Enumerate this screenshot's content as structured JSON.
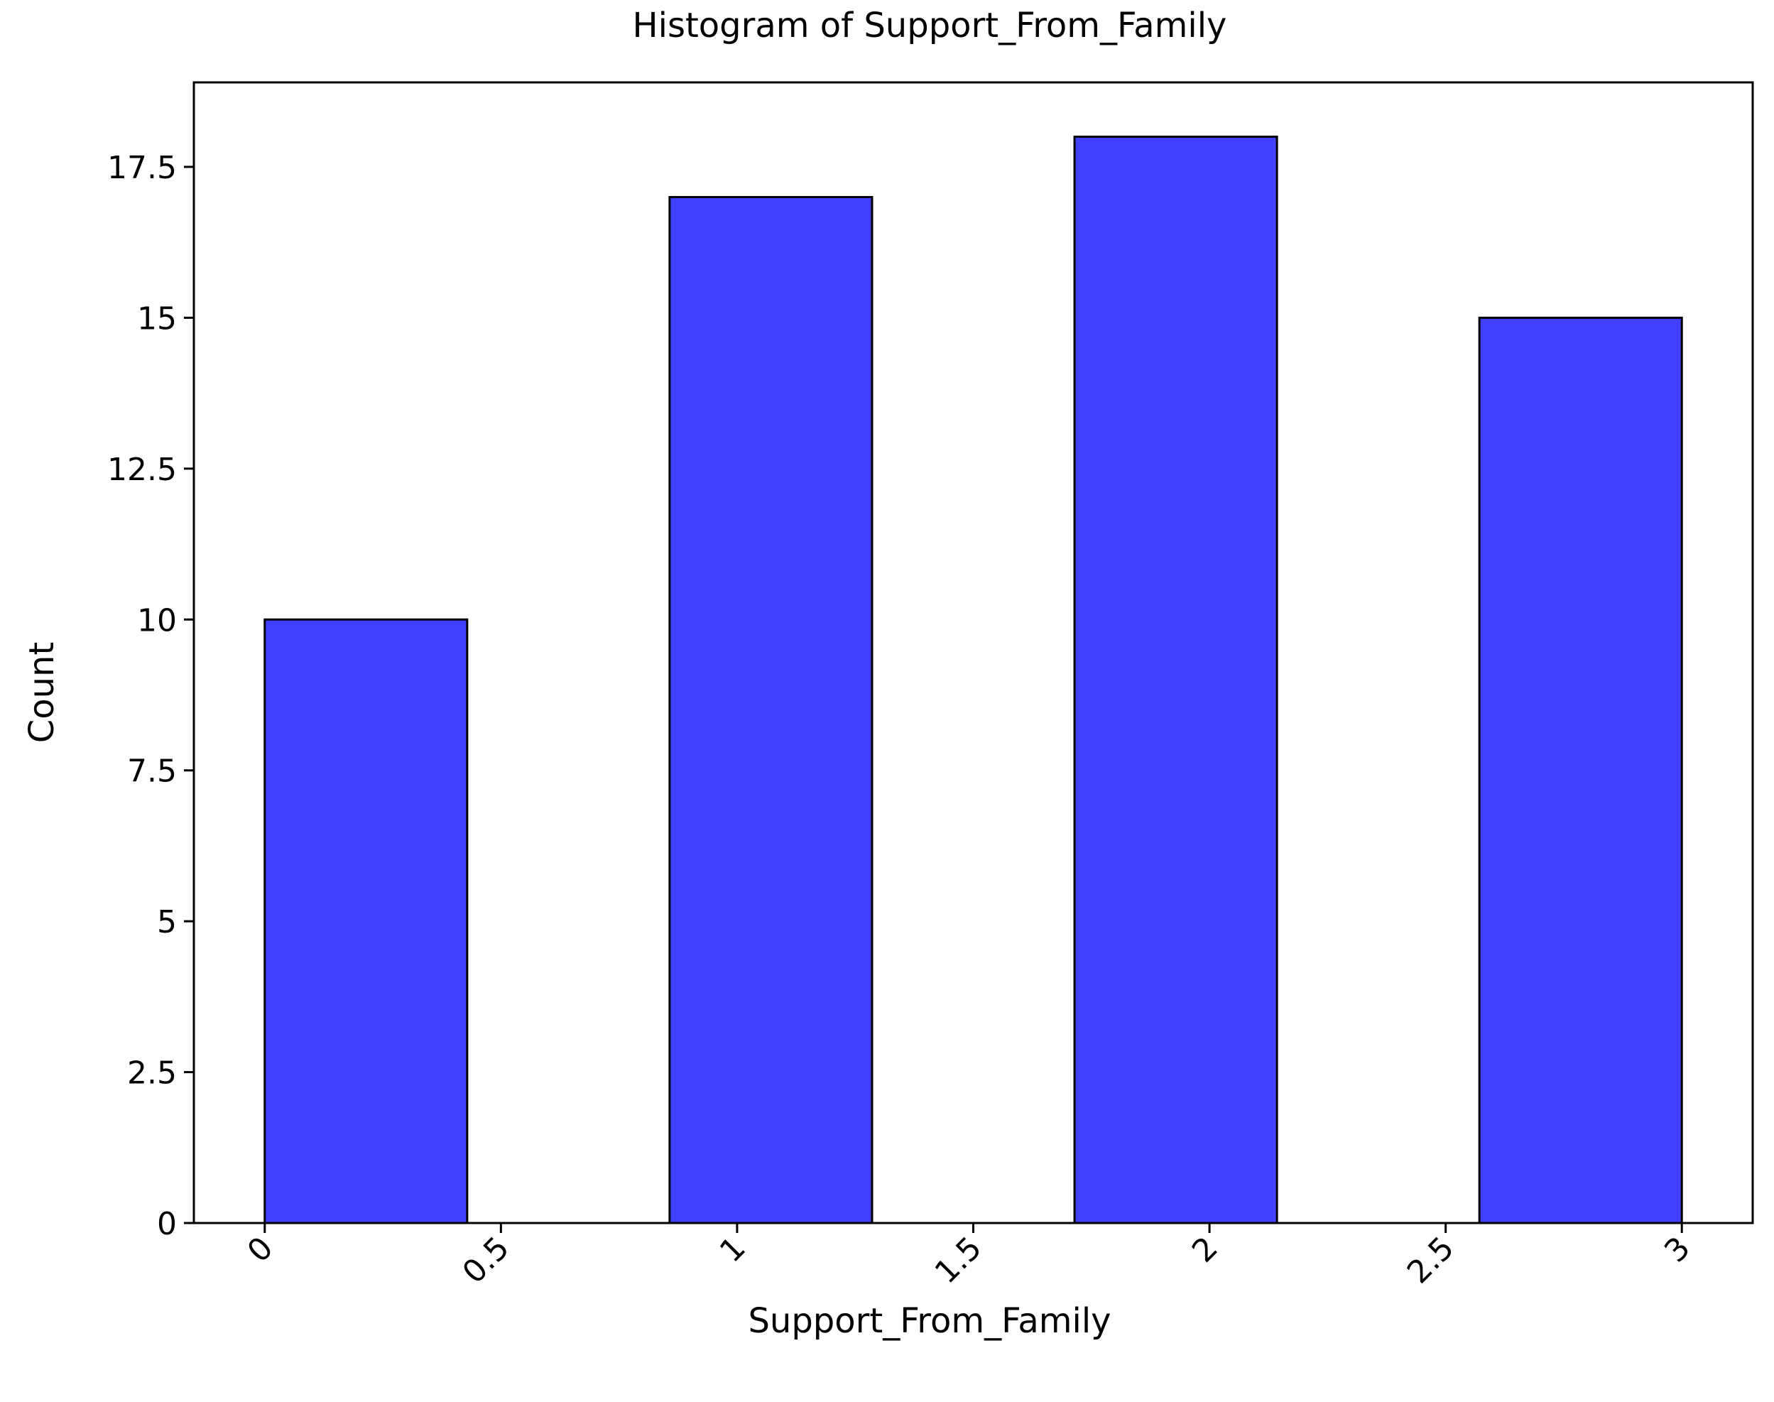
{
  "chart_data": {
    "type": "bar",
    "title": "Histogram of Support_From_Family",
    "xlabel": "Support_From_Family",
    "ylabel": "Count",
    "bins": [
      {
        "x0": 0.0,
        "x1": 0.4286,
        "count": 10
      },
      {
        "x0": 0.4286,
        "x1": 0.8571,
        "count": 0
      },
      {
        "x0": 0.8571,
        "x1": 1.2857,
        "count": 17
      },
      {
        "x0": 1.2857,
        "x1": 1.7143,
        "count": 0
      },
      {
        "x0": 1.7143,
        "x1": 2.1429,
        "count": 18
      },
      {
        "x0": 2.1429,
        "x1": 2.5714,
        "count": 0
      },
      {
        "x0": 2.5714,
        "x1": 3.0,
        "count": 15
      }
    ],
    "xlim": [
      -0.15,
      3.15
    ],
    "ylim": [
      0,
      18.9
    ],
    "xticks": [
      0,
      0.5,
      1,
      1.5,
      2,
      2.5,
      3
    ],
    "xtick_labels": [
      "0",
      "0.5",
      "1",
      "1.5",
      "2",
      "2.5",
      "3"
    ],
    "yticks": [
      0,
      2.5,
      5,
      7.5,
      10,
      12.5,
      15,
      17.5
    ],
    "ytick_labels": [
      "0",
      "2.5",
      "5",
      "7.5",
      "10",
      "12.5",
      "15",
      "17.5"
    ],
    "grid": false,
    "legend": "none",
    "colors": {
      "bar_fill": "#4040ff",
      "bar_edge": "#000000",
      "axis": "#000000"
    }
  }
}
